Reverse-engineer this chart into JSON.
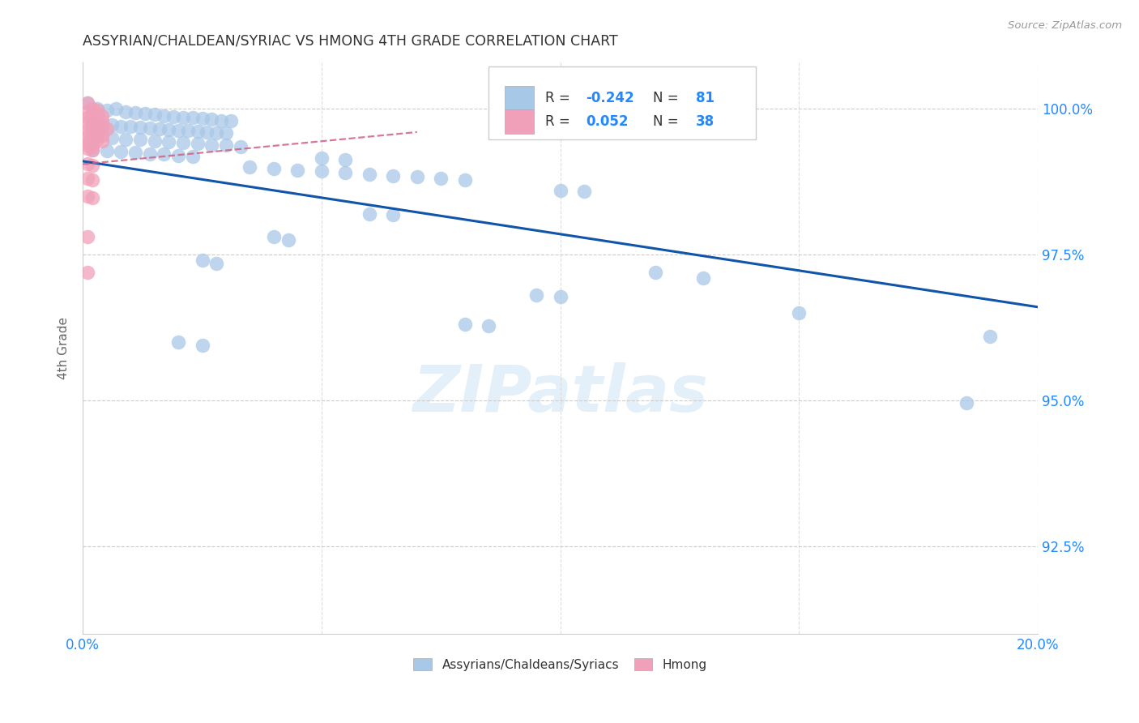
{
  "title": "ASSYRIAN/CHALDEAN/SYRIAC VS HMONG 4TH GRADE CORRELATION CHART",
  "source": "Source: ZipAtlas.com",
  "ylabel": "4th Grade",
  "ytick_labels": [
    "92.5%",
    "95.0%",
    "97.5%",
    "100.0%"
  ],
  "ytick_values": [
    0.925,
    0.95,
    0.975,
    1.0
  ],
  "xlim": [
    0.0,
    0.2
  ],
  "ylim": [
    0.91,
    1.008
  ],
  "r_blue": -0.242,
  "n_blue": 81,
  "r_pink": 0.052,
  "n_pink": 38,
  "legend_label_blue": "Assyrians/Chaldeans/Syriacs",
  "legend_label_pink": "Hmong",
  "blue_color": "#a8c8e8",
  "pink_color": "#f0a0b8",
  "blue_line_color": "#1155aa",
  "pink_line_color": "#d06080",
  "watermark": "ZIPatlas",
  "title_color": "#333333",
  "axis_label_color": "#666666",
  "tick_label_color": "#2288ff",
  "blue_scatter": [
    [
      0.001,
      1.001
    ],
    [
      0.003,
      1.0
    ],
    [
      0.005,
      0.9998
    ],
    [
      0.007,
      1.0
    ],
    [
      0.009,
      0.9995
    ],
    [
      0.011,
      0.9993
    ],
    [
      0.013,
      0.9992
    ],
    [
      0.015,
      0.999
    ],
    [
      0.017,
      0.9988
    ],
    [
      0.019,
      0.9987
    ],
    [
      0.021,
      0.9985
    ],
    [
      0.023,
      0.9985
    ],
    [
      0.025,
      0.9983
    ],
    [
      0.027,
      0.9982
    ],
    [
      0.029,
      0.998
    ],
    [
      0.031,
      0.998
    ],
    [
      0.002,
      0.9975
    ],
    [
      0.004,
      0.9973
    ],
    [
      0.006,
      0.9972
    ],
    [
      0.008,
      0.997
    ],
    [
      0.01,
      0.9969
    ],
    [
      0.012,
      0.9968
    ],
    [
      0.014,
      0.9967
    ],
    [
      0.016,
      0.9965
    ],
    [
      0.018,
      0.9964
    ],
    [
      0.02,
      0.9963
    ],
    [
      0.022,
      0.9962
    ],
    [
      0.024,
      0.9961
    ],
    [
      0.026,
      0.996
    ],
    [
      0.028,
      0.9959
    ],
    [
      0.03,
      0.9958
    ],
    [
      0.003,
      0.9953
    ],
    [
      0.006,
      0.995
    ],
    [
      0.009,
      0.9948
    ],
    [
      0.012,
      0.9947
    ],
    [
      0.015,
      0.9945
    ],
    [
      0.018,
      0.9943
    ],
    [
      0.021,
      0.9942
    ],
    [
      0.024,
      0.994
    ],
    [
      0.027,
      0.9938
    ],
    [
      0.03,
      0.9937
    ],
    [
      0.033,
      0.9935
    ],
    [
      0.002,
      0.993
    ],
    [
      0.005,
      0.9928
    ],
    [
      0.008,
      0.9926
    ],
    [
      0.011,
      0.9925
    ],
    [
      0.014,
      0.9923
    ],
    [
      0.017,
      0.9922
    ],
    [
      0.02,
      0.992
    ],
    [
      0.023,
      0.9918
    ],
    [
      0.05,
      0.9915
    ],
    [
      0.055,
      0.9912
    ],
    [
      0.035,
      0.99
    ],
    [
      0.04,
      0.9898
    ],
    [
      0.045,
      0.9895
    ],
    [
      0.05,
      0.9893
    ],
    [
      0.055,
      0.989
    ],
    [
      0.06,
      0.9888
    ],
    [
      0.065,
      0.9885
    ],
    [
      0.07,
      0.9883
    ],
    [
      0.075,
      0.988
    ],
    [
      0.08,
      0.9878
    ],
    [
      0.1,
      0.986
    ],
    [
      0.105,
      0.9858
    ],
    [
      0.06,
      0.982
    ],
    [
      0.065,
      0.9818
    ],
    [
      0.04,
      0.978
    ],
    [
      0.043,
      0.9775
    ],
    [
      0.025,
      0.974
    ],
    [
      0.028,
      0.9735
    ],
    [
      0.12,
      0.972
    ],
    [
      0.13,
      0.971
    ],
    [
      0.095,
      0.968
    ],
    [
      0.1,
      0.9678
    ],
    [
      0.15,
      0.965
    ],
    [
      0.08,
      0.963
    ],
    [
      0.085,
      0.9628
    ],
    [
      0.19,
      0.961
    ],
    [
      0.02,
      0.96
    ],
    [
      0.025,
      0.9595
    ],
    [
      0.185,
      0.9495
    ]
  ],
  "pink_scatter": [
    [
      0.001,
      1.001
    ],
    [
      0.002,
      1.0
    ],
    [
      0.003,
      0.9998
    ],
    [
      0.001,
      0.9995
    ],
    [
      0.002,
      0.9993
    ],
    [
      0.003,
      0.999
    ],
    [
      0.004,
      0.9988
    ],
    [
      0.001,
      0.9985
    ],
    [
      0.002,
      0.9983
    ],
    [
      0.003,
      0.998
    ],
    [
      0.004,
      0.9978
    ],
    [
      0.001,
      0.9975
    ],
    [
      0.002,
      0.9972
    ],
    [
      0.003,
      0.997
    ],
    [
      0.004,
      0.9968
    ],
    [
      0.005,
      0.9965
    ],
    [
      0.001,
      0.9963
    ],
    [
      0.002,
      0.996
    ],
    [
      0.003,
      0.9958
    ],
    [
      0.004,
      0.9955
    ],
    [
      0.001,
      0.9953
    ],
    [
      0.002,
      0.995
    ],
    [
      0.003,
      0.9948
    ],
    [
      0.004,
      0.9945
    ],
    [
      0.001,
      0.9942
    ],
    [
      0.002,
      0.994
    ],
    [
      0.001,
      0.9937
    ],
    [
      0.002,
      0.9935
    ],
    [
      0.001,
      0.9932
    ],
    [
      0.002,
      0.993
    ],
    [
      0.001,
      0.9905
    ],
    [
      0.002,
      0.9903
    ],
    [
      0.001,
      0.988
    ],
    [
      0.002,
      0.9878
    ],
    [
      0.001,
      0.985
    ],
    [
      0.002,
      0.9848
    ],
    [
      0.001,
      0.978
    ],
    [
      0.001,
      0.972
    ]
  ],
  "blue_trend": [
    0.0,
    0.2,
    0.991,
    0.966
  ],
  "pink_trend": [
    0.0,
    0.07,
    0.9905,
    0.996
  ]
}
